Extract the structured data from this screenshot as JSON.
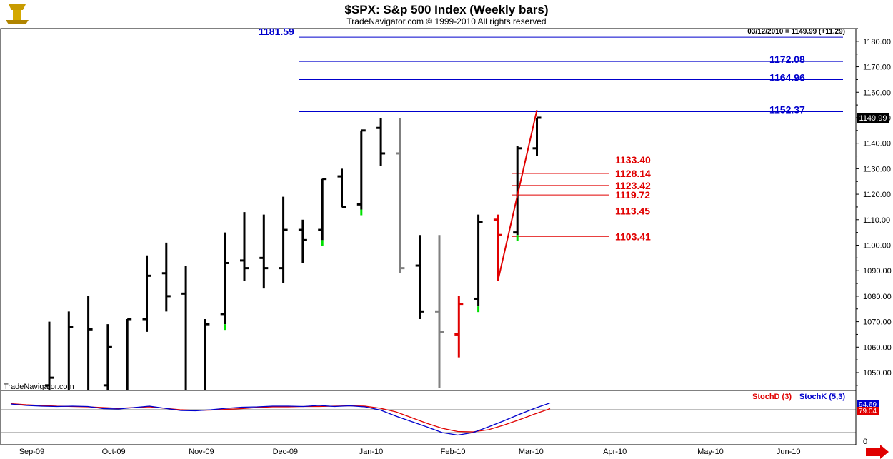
{
  "header": {
    "title": "$SPX:  S&p 500 Index  (Weekly bars)",
    "subtitle": "TradeNavigator.com © 1999-2010 All rights reserved",
    "last_quote": "03/12/2010 = 1149.99 (+11.29)",
    "watermark": "TradeNavigator.com"
  },
  "indicators": {
    "stochd_label": "StochD (3)",
    "stochk_label": "StochK (5,3)",
    "stochk_value": "94.69",
    "stochd_value": "79.04",
    "zero_label": "0"
  },
  "colors": {
    "up_bar": "#000000",
    "gray_bar": "#808080",
    "red": "#e00000",
    "green": "#00e000",
    "blue": "#0000cc"
  },
  "chart_data": {
    "type": "ohlc",
    "ylim": [
      1043,
      1185
    ],
    "y_ticks": [
      "1050.00",
      "1060.00",
      "1070.00",
      "1080.00",
      "1090.00",
      "1100.00",
      "1110.00",
      "1120.00",
      "1130.00",
      "1140.00",
      "1150.00",
      "1160.00",
      "1170.00",
      "1180.00"
    ],
    "y_tick_values": [
      1050,
      1060,
      1070,
      1080,
      1090,
      1100,
      1110,
      1120,
      1130,
      1140,
      1150,
      1160,
      1170,
      1180
    ],
    "x_ticks": [
      "Sep-09",
      "Oct-09",
      "Nov-09",
      "Dec-09",
      "Jan-10",
      "Feb-10",
      "Mar-10",
      "Apr-10",
      "May-10",
      "Jun-10"
    ],
    "x_tick_weeks": [
      0.5,
      4.7,
      9.2,
      13.5,
      17.9,
      22.1,
      26.1,
      30.4,
      35.3,
      39.3
    ],
    "last_price_label": "1149.99",
    "last_price": 1149.99,
    "bars": [
      {
        "o": 1045,
        "h": 1070,
        "l": 1040,
        "c": 1048,
        "color": "black"
      },
      {
        "o": 1030,
        "h": 1074,
        "l": 1020,
        "c": 1068,
        "color": "black"
      },
      {
        "o": 1040,
        "h": 1080,
        "l": 1025,
        "c": 1067,
        "color": "black"
      },
      {
        "o": 1045,
        "h": 1069,
        "l": 1030,
        "c": 1060,
        "color": "black"
      },
      {
        "o": 1040,
        "h": 1071,
        "l": 1030,
        "c": 1071,
        "color": "black"
      },
      {
        "o": 1071,
        "h": 1096,
        "l": 1066,
        "c": 1088,
        "color": "black"
      },
      {
        "o": 1089,
        "h": 1101,
        "l": 1074,
        "c": 1080,
        "color": "black"
      },
      {
        "o": 1081,
        "h": 1092,
        "l": 1030,
        "c": 1040,
        "color": "black"
      },
      {
        "o": 1040,
        "h": 1071,
        "l": 1030,
        "c": 1069,
        "color": "black"
      },
      {
        "o": 1073,
        "h": 1105,
        "l": 1069,
        "c": 1093,
        "color": "black",
        "low_mark": "green"
      },
      {
        "o": 1094,
        "h": 1113,
        "l": 1086,
        "c": 1091,
        "color": "black"
      },
      {
        "o": 1095,
        "h": 1112,
        "l": 1083,
        "c": 1091,
        "color": "black"
      },
      {
        "o": 1091,
        "h": 1119,
        "l": 1085,
        "c": 1106,
        "color": "black"
      },
      {
        "o": 1106,
        "h": 1110,
        "l": 1093,
        "c": 1102,
        "color": "black"
      },
      {
        "o": 1106,
        "h": 1126,
        "l": 1102,
        "c": 1126,
        "color": "black",
        "low_mark": "green"
      },
      {
        "o": 1127,
        "h": 1130,
        "l": 1115,
        "c": 1115,
        "color": "black"
      },
      {
        "o": 1116,
        "h": 1145,
        "l": 1114,
        "c": 1145,
        "color": "black",
        "low_mark": "green"
      },
      {
        "o": 1146,
        "h": 1150,
        "l": 1131,
        "c": 1136,
        "color": "black"
      },
      {
        "o": 1136,
        "h": 1150,
        "l": 1089,
        "c": 1091,
        "color": "gray"
      },
      {
        "o": 1092,
        "h": 1104,
        "l": 1071,
        "c": 1074,
        "color": "black"
      },
      {
        "o": 1074,
        "h": 1104,
        "l": 1044,
        "c": 1066,
        "color": "gray"
      },
      {
        "o": 1065,
        "h": 1080,
        "l": 1056,
        "c": 1077,
        "color": "red"
      },
      {
        "o": 1079,
        "h": 1112,
        "l": 1076,
        "c": 1109,
        "color": "black",
        "low_mark": "green"
      },
      {
        "o": 1110,
        "h": 1112,
        "l": 1086,
        "c": 1104,
        "color": "red"
      },
      {
        "o": 1105,
        "h": 1139,
        "l": 1104,
        "c": 1138,
        "color": "black",
        "low_mark": "green"
      },
      {
        "o": 1138,
        "h": 1150,
        "l": 1135,
        "c": 1150,
        "color": "black"
      }
    ],
    "fib_levels_blue": [
      {
        "label": "1181.59",
        "value": 1181.59,
        "label_side": "left"
      },
      {
        "label": "1172.08",
        "value": 1172.08,
        "label_side": "right"
      },
      {
        "label": "1164.96",
        "value": 1164.96,
        "label_side": "right"
      },
      {
        "label": "1152.37",
        "value": 1152.37,
        "label_side": "right"
      }
    ],
    "fib_levels_red": [
      {
        "label": "1133.40",
        "value": 1133.4,
        "label_only": true
      },
      {
        "label": "1128.14",
        "value": 1128.14
      },
      {
        "label": "1123.42",
        "value": 1123.42
      },
      {
        "label": "1119.72",
        "value": 1119.72
      },
      {
        "label": "1113.45",
        "value": 1113.45
      },
      {
        "label": "1103.41",
        "value": 1103.41
      }
    ],
    "trend_line": {
      "from_week": 23.0,
      "from_price": 1086,
      "to_week": 25.0,
      "to_price": 1153
    },
    "stochk": [
      92,
      88,
      86,
      85,
      86,
      85,
      79,
      78,
      82,
      86,
      80,
      74,
      73,
      76,
      80,
      83,
      84,
      86,
      86,
      85,
      88,
      85,
      87,
      84,
      75,
      58,
      43,
      28,
      12,
      5,
      12,
      28,
      45,
      63,
      80,
      95
    ],
    "stochd": [
      93,
      90,
      88,
      86,
      85,
      84,
      82,
      80,
      82,
      84,
      80,
      76,
      74,
      75,
      77,
      79,
      82,
      84,
      84,
      85,
      85,
      86,
      87,
      86,
      80,
      70,
      54,
      38,
      24,
      15,
      14,
      20,
      33,
      48,
      64,
      79
    ]
  }
}
